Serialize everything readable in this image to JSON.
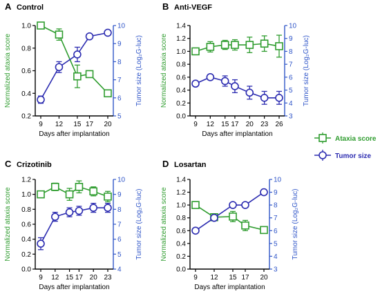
{
  "colors": {
    "ataxia": "#2e9c2e",
    "tumor": "#2b2bb0",
    "axis": "#000000",
    "tumorAxis": "#2f55c8"
  },
  "legend": {
    "items": [
      {
        "label": "Ataxia score",
        "color": "#2e9c2e",
        "marker": "square"
      },
      {
        "label": "Tumor size",
        "color": "#2b2bb0",
        "marker": "circle"
      }
    ]
  },
  "chart_data": [
    {
      "panel": "A",
      "title": "Control",
      "type": "line",
      "xlabel": "Days after implantation",
      "ylabel_left": "Normalized ataxia score",
      "ylabel_right": "Tumor size (Log₂G-luc)",
      "x": [
        9,
        12,
        15,
        17,
        20
      ],
      "yleft_lim": [
        0.2,
        1.0
      ],
      "yleft_ticks": [
        0.2,
        0.4,
        0.6,
        0.8,
        1.0
      ],
      "yright_lim": [
        5,
        10
      ],
      "yright_ticks": [
        5,
        6,
        7,
        8,
        9,
        10
      ],
      "series": [
        {
          "name": "Ataxia score",
          "axis": "left",
          "values": [
            1.0,
            0.92,
            0.55,
            0.57,
            0.4
          ],
          "errors": [
            0.02,
            0.05,
            0.1,
            0.03,
            0.02
          ]
        },
        {
          "name": "Tumor size",
          "axis": "right",
          "values": [
            5.9,
            7.7,
            8.4,
            9.4,
            9.6
          ],
          "errors": [
            0.2,
            0.3,
            0.4,
            0.1,
            0.1
          ]
        }
      ]
    },
    {
      "panel": "B",
      "title": "Anti-VEGF",
      "type": "line",
      "xlabel": "Days after implantation",
      "ylabel_left": "Normalized ataxia score",
      "ylabel_right": "Tumor size (Log₂G-luc)",
      "x": [
        9,
        12,
        15,
        17,
        20,
        23,
        26
      ],
      "yleft_lim": [
        0.0,
        1.4
      ],
      "yleft_ticks": [
        0.0,
        0.2,
        0.4,
        0.6,
        0.8,
        1.0,
        1.2,
        1.4
      ],
      "yright_lim": [
        3,
        10
      ],
      "yright_ticks": [
        3,
        4,
        5,
        6,
        7,
        8,
        9,
        10
      ],
      "series": [
        {
          "name": "Ataxia score",
          "axis": "left",
          "values": [
            1.0,
            1.07,
            1.1,
            1.1,
            1.1,
            1.12,
            1.08
          ],
          "errors": [
            0.03,
            0.08,
            0.07,
            0.08,
            0.12,
            0.12,
            0.17
          ]
        },
        {
          "name": "Tumor size",
          "axis": "right",
          "values": [
            5.5,
            6.0,
            5.7,
            5.3,
            4.8,
            4.4,
            4.4
          ],
          "errors": [
            0.2,
            0.2,
            0.4,
            0.5,
            0.5,
            0.5,
            0.5
          ]
        }
      ]
    },
    {
      "panel": "C",
      "title": "Crizotinib",
      "type": "line",
      "xlabel": "Days after implantation",
      "ylabel_left": "Normalized ataxia score",
      "ylabel_right": "Tumor size (Log₂G-luc)",
      "x": [
        9,
        12,
        15,
        17,
        20,
        23
      ],
      "yleft_lim": [
        0.0,
        1.2
      ],
      "yleft_ticks": [
        0.0,
        0.2,
        0.4,
        0.6,
        0.8,
        1.0,
        1.2
      ],
      "yright_lim": [
        4,
        10
      ],
      "yright_ticks": [
        4,
        5,
        6,
        7,
        8,
        9,
        10
      ],
      "series": [
        {
          "name": "Ataxia score",
          "axis": "left",
          "values": [
            1.0,
            1.1,
            1.0,
            1.1,
            1.04,
            0.97
          ],
          "errors": [
            0.02,
            0.05,
            0.08,
            0.08,
            0.06,
            0.07
          ]
        },
        {
          "name": "Tumor size",
          "axis": "right",
          "values": [
            5.7,
            7.5,
            7.8,
            7.9,
            8.1,
            8.1
          ],
          "errors": [
            0.4,
            0.3,
            0.3,
            0.3,
            0.3,
            0.3
          ]
        }
      ]
    },
    {
      "panel": "D",
      "title": "Losartan",
      "type": "line",
      "xlabel": "Days after implantation",
      "ylabel_left": "Normalized ataxia score",
      "ylabel_right": "Tumor size (Log₂G-luc)",
      "x": [
        9,
        12,
        15,
        17,
        20
      ],
      "yleft_lim": [
        0.0,
        1.4
      ],
      "yleft_ticks": [
        0.0,
        0.2,
        0.4,
        0.6,
        0.8,
        1.0,
        1.2,
        1.4
      ],
      "yright_lim": [
        3,
        10
      ],
      "yright_ticks": [
        3,
        4,
        5,
        6,
        7,
        8,
        9,
        10
      ],
      "series": [
        {
          "name": "Ataxia score",
          "axis": "left",
          "values": [
            1.0,
            0.81,
            0.82,
            0.68,
            0.61
          ],
          "errors": [
            0.02,
            0.04,
            0.08,
            0.08,
            0.03
          ]
        },
        {
          "name": "Tumor size",
          "axis": "right",
          "values": [
            6.0,
            7.0,
            8.0,
            8.0,
            9.0
          ],
          "errors": [
            0.1,
            0.1,
            0.1,
            0.1,
            0.2
          ]
        }
      ]
    }
  ]
}
